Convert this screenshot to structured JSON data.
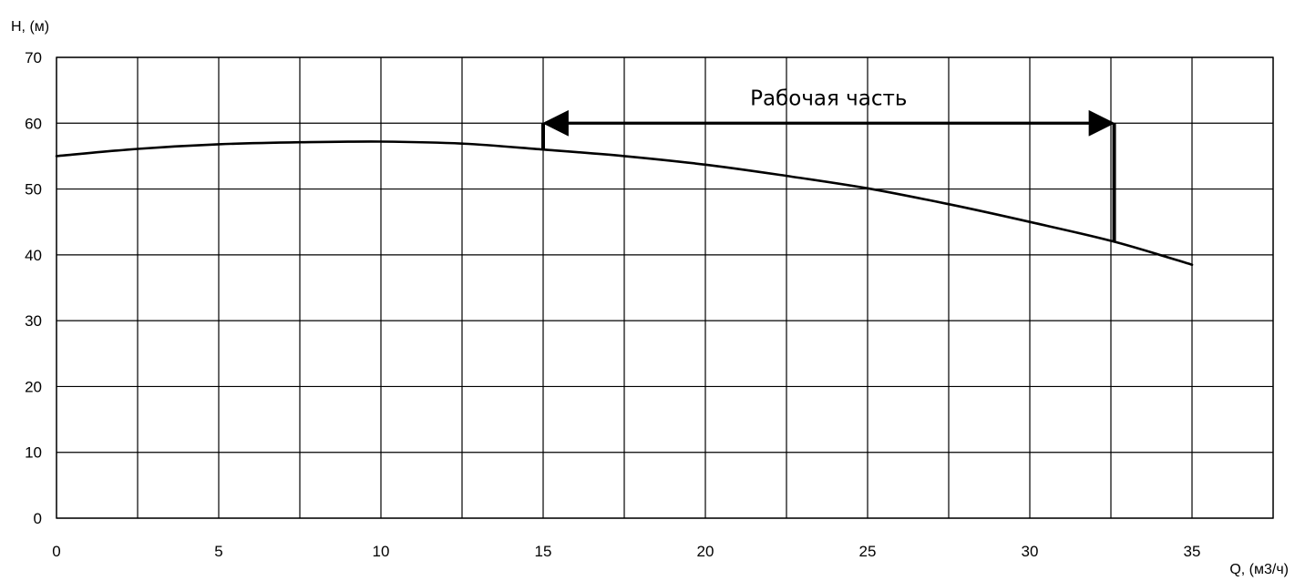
{
  "chart_data": {
    "type": "line",
    "title": "",
    "xlabel": "Q, (м3/ч)",
    "ylabel": "H, (м)",
    "xlim": [
      0,
      37.5
    ],
    "ylim": [
      0,
      70
    ],
    "x_ticks": [
      0,
      5,
      10,
      15,
      20,
      25,
      30,
      35
    ],
    "x_tick_labels": [
      "0",
      "5",
      "10",
      "15",
      "20",
      "25",
      "30",
      "35"
    ],
    "x_gridlines": [
      0,
      2.5,
      5,
      7.5,
      10,
      12.5,
      15,
      17.5,
      20,
      22.5,
      25,
      27.5,
      30,
      32.5,
      35,
      37.5
    ],
    "y_ticks": [
      0,
      10,
      20,
      30,
      40,
      50,
      60,
      70
    ],
    "y_tick_labels": [
      "0",
      "10",
      "20",
      "30",
      "40",
      "50",
      "60",
      "70"
    ],
    "grid": true,
    "series": [
      {
        "x": [
          0,
          2.5,
          5,
          7.5,
          10,
          12.5,
          15,
          17.5,
          20,
          22.5,
          25,
          27.5,
          30,
          32.6,
          35
        ],
        "y": [
          55,
          56.1,
          56.8,
          57.1,
          57.2,
          56.9,
          56,
          55,
          53.7,
          52,
          50.1,
          47.7,
          45,
          42,
          38.5
        ],
        "color": "#000000"
      }
    ],
    "annotations": [
      {
        "type": "double-arrow",
        "label": "Рабочая часть",
        "x_start": 15,
        "x_end": 32.6,
        "y": 60
      },
      {
        "type": "vline",
        "x": 15,
        "y_from": 56,
        "y_to": 60
      },
      {
        "type": "vline",
        "x": 32.6,
        "y_from": 42,
        "y_to": 60
      }
    ]
  }
}
